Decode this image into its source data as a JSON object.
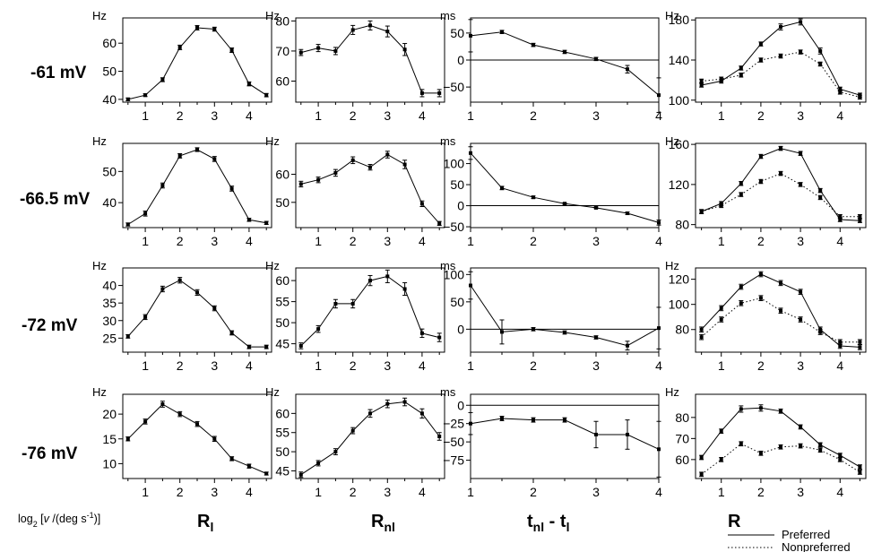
{
  "figure": {
    "x_caption": "log2 [v /(deg s-1)]",
    "x_caption_parts": {
      "a": "log",
      "b": "2",
      "c": " [",
      "d": "v",
      "e": " /(deg s",
      "f": "-1",
      "g": ")]"
    },
    "column_labels": [
      {
        "main": "R",
        "sub": "l"
      },
      {
        "main": "R",
        "sub": "nl"
      },
      {
        "main": "t",
        "sub1": "nl",
        "mid": " - t",
        "sub2": "l"
      },
      {
        "main": "R",
        "sub": ""
      }
    ],
    "row_labels": [
      "-61 mV",
      "-66.5 mV",
      "-72 mV",
      "-76 mV"
    ],
    "legend": {
      "preferred": "Preferred",
      "nonpreferred": "Nonpreferred"
    },
    "colors": {
      "line": "#000000",
      "axis": "#000000"
    }
  },
  "chart_data": [
    {
      "type": "line",
      "row": 0,
      "col": 0,
      "ylabel": "Hz",
      "xlim": [
        0.35,
        4.65
      ],
      "ylim": [
        39,
        69
      ],
      "xticks": [
        1,
        2,
        3,
        4
      ],
      "yticks": [
        40,
        50,
        60
      ],
      "x": [
        0.5,
        1,
        1.5,
        2,
        2.5,
        3,
        3.5,
        4,
        4.5
      ],
      "series": [
        {
          "values": [
            40,
            41.5,
            47,
            58.5,
            65.5,
            65,
            57.5,
            45.5,
            41.5
          ],
          "err": [
            0.5,
            0.5,
            0.7,
            0.8,
            0.8,
            0.7,
            0.8,
            0.7,
            0.6
          ]
        }
      ]
    },
    {
      "type": "line",
      "row": 0,
      "col": 1,
      "ylabel": "Hz",
      "xlim": [
        0.35,
        4.65
      ],
      "ylim": [
        53,
        81
      ],
      "xticks": [
        1,
        2,
        3,
        4
      ],
      "yticks": [
        60,
        70,
        80
      ],
      "x": [
        0.5,
        1,
        1.5,
        2,
        2.5,
        3,
        3.5,
        4,
        4.5
      ],
      "series": [
        {
          "values": [
            69.5,
            71,
            70,
            77,
            78.5,
            76.5,
            70.5,
            56,
            56
          ],
          "err": [
            1,
            1.2,
            1.2,
            1.5,
            1.5,
            1.8,
            2,
            1.2,
            1.2
          ]
        }
      ]
    },
    {
      "type": "line",
      "row": 0,
      "col": 2,
      "ylabel": "ms",
      "xlim": [
        1,
        4
      ],
      "ylim": [
        -78,
        78
      ],
      "xticks": [
        1,
        2,
        3,
        4
      ],
      "yticks": [
        50,
        0,
        -50
      ],
      "zero_line": true,
      "x": [
        1,
        1.5,
        2,
        2.5,
        3,
        3.5,
        4
      ],
      "series": [
        {
          "values": [
            45,
            52,
            28,
            15,
            2,
            -17,
            -65
          ],
          "err": [
            30,
            3,
            3,
            3,
            3,
            7,
            32
          ]
        }
      ]
    },
    {
      "type": "line",
      "row": 0,
      "col": 3,
      "ylabel": "Hz",
      "xlim": [
        0.35,
        4.65
      ],
      "ylim": [
        98,
        182
      ],
      "xticks": [
        1,
        2,
        3,
        4
      ],
      "yticks": [
        100,
        140,
        180
      ],
      "x": [
        0.5,
        1,
        1.5,
        2,
        2.5,
        3,
        3.5,
        4,
        4.5
      ],
      "series": [
        {
          "name": "Preferred",
          "values": [
            115,
            119,
            132,
            156,
            173,
            178,
            149,
            111,
            105
          ],
          "err": [
            2,
            2,
            2,
            2,
            3,
            3,
            3,
            2,
            2
          ]
        },
        {
          "name": "Nonpreferred",
          "values": [
            119,
            121,
            125,
            140,
            144,
            148,
            136,
            108,
            103
          ],
          "err": [
            2,
            2,
            2,
            2,
            2,
            2,
            2,
            2,
            2
          ]
        }
      ]
    },
    {
      "type": "line",
      "row": 1,
      "col": 0,
      "ylabel": "Hz",
      "xlim": [
        0.35,
        4.65
      ],
      "ylim": [
        32,
        59
      ],
      "xticks": [
        1,
        2,
        3,
        4
      ],
      "yticks": [
        40,
        50
      ],
      "x": [
        0.5,
        1,
        1.5,
        2,
        2.5,
        3,
        3.5,
        4,
        4.5
      ],
      "series": [
        {
          "values": [
            33,
            36.5,
            45.5,
            55,
            57,
            54,
            44.5,
            34.5,
            33.5
          ],
          "err": [
            0.5,
            0.8,
            0.8,
            0.7,
            0.6,
            0.8,
            0.8,
            0.5,
            0.5
          ]
        }
      ]
    },
    {
      "type": "line",
      "row": 1,
      "col": 1,
      "ylabel": "Hz",
      "xlim": [
        0.35,
        4.65
      ],
      "ylim": [
        41,
        71
      ],
      "xticks": [
        1,
        2,
        3,
        4
      ],
      "yticks": [
        50,
        60
      ],
      "x": [
        0.5,
        1,
        1.5,
        2,
        2.5,
        3,
        3.5,
        4,
        4.5
      ],
      "series": [
        {
          "values": [
            56.5,
            58,
            60.5,
            65,
            62.5,
            67,
            63.5,
            49.5,
            42.5
          ],
          "err": [
            1,
            1,
            1.2,
            1.2,
            1,
            1.2,
            1.5,
            1,
            0.7
          ]
        }
      ]
    },
    {
      "type": "line",
      "row": 1,
      "col": 2,
      "ylabel": "ms",
      "xlim": [
        1,
        4
      ],
      "ylim": [
        -52,
        148
      ],
      "xticks": [
        1,
        2,
        3,
        4
      ],
      "yticks": [
        100,
        50,
        0,
        -50
      ],
      "zero_line": true,
      "x": [
        1,
        1.5,
        2,
        2.5,
        3,
        3.5,
        4
      ],
      "series": [
        {
          "values": [
            125,
            42,
            20,
            5,
            -5,
            -18,
            -40
          ],
          "err": [
            15,
            4,
            3,
            2,
            2,
            3,
            6
          ]
        }
      ]
    },
    {
      "type": "line",
      "row": 1,
      "col": 3,
      "ylabel": "Hz",
      "xlim": [
        0.35,
        4.65
      ],
      "ylim": [
        77,
        161
      ],
      "xticks": [
        1,
        2,
        3,
        4
      ],
      "yticks": [
        80,
        120,
        160
      ],
      "x": [
        0.5,
        1,
        1.5,
        2,
        2.5,
        3,
        3.5,
        4,
        4.5
      ],
      "series": [
        {
          "name": "Preferred",
          "values": [
            93,
            101,
            121,
            148,
            156,
            151,
            114,
            85,
            84
          ],
          "err": [
            2,
            2,
            2,
            2,
            2,
            2,
            2,
            2,
            2
          ]
        },
        {
          "name": "Nonpreferred",
          "values": [
            93,
            99,
            110,
            123,
            131,
            120,
            107,
            88,
            88
          ],
          "err": [
            2,
            2,
            2,
            2,
            2,
            2,
            2,
            2,
            2
          ]
        }
      ]
    },
    {
      "type": "line",
      "row": 2,
      "col": 0,
      "ylabel": "Hz",
      "xlim": [
        0.35,
        4.65
      ],
      "ylim": [
        21,
        45
      ],
      "xticks": [
        1,
        2,
        3,
        4
      ],
      "yticks": [
        25,
        30,
        35,
        40
      ],
      "x": [
        0.5,
        1,
        1.5,
        2,
        2.5,
        3,
        3.5,
        4,
        4.5
      ],
      "series": [
        {
          "values": [
            25.5,
            31,
            39,
            41.5,
            38,
            33.5,
            26.5,
            22.5,
            22.5
          ],
          "err": [
            0.5,
            0.7,
            0.8,
            0.8,
            0.8,
            0.7,
            0.6,
            0.5,
            0.5
          ]
        }
      ]
    },
    {
      "type": "line",
      "row": 2,
      "col": 1,
      "ylabel": "Hz",
      "xlim": [
        0.35,
        4.65
      ],
      "ylim": [
        43,
        63
      ],
      "xticks": [
        1,
        2,
        3,
        4
      ],
      "yticks": [
        45,
        50,
        55,
        60
      ],
      "x": [
        0.5,
        1,
        1.5,
        2,
        2.5,
        3,
        3.5,
        4,
        4.5
      ],
      "series": [
        {
          "values": [
            44.5,
            48.5,
            54.5,
            54.5,
            60,
            61,
            58,
            47.5,
            46.5
          ],
          "err": [
            0.7,
            0.8,
            1,
            1,
            1.2,
            1.5,
            1.5,
            1,
            1
          ]
        }
      ]
    },
    {
      "type": "line",
      "row": 2,
      "col": 2,
      "ylabel": "ms",
      "xlim": [
        1,
        4
      ],
      "ylim": [
        -42,
        112
      ],
      "xticks": [
        1,
        2,
        3,
        4
      ],
      "yticks": [
        100,
        50,
        0
      ],
      "zero_line": true,
      "x": [
        1,
        1.5,
        2,
        2.5,
        3,
        3.5,
        4
      ],
      "series": [
        {
          "values": [
            80,
            -5,
            0,
            -6,
            -15,
            -30,
            2
          ],
          "err": [
            25,
            22,
            3,
            3,
            3,
            8,
            38
          ]
        }
      ]
    },
    {
      "type": "line",
      "row": 2,
      "col": 3,
      "ylabel": "Hz",
      "xlim": [
        0.35,
        4.65
      ],
      "ylim": [
        62,
        129
      ],
      "xticks": [
        1,
        2,
        3,
        4
      ],
      "yticks": [
        80,
        100,
        120
      ],
      "x": [
        0.5,
        1,
        1.5,
        2,
        2.5,
        3,
        3.5,
        4,
        4.5
      ],
      "series": [
        {
          "name": "Preferred",
          "values": [
            80,
            97,
            114,
            124,
            117,
            110,
            80,
            67,
            66
          ],
          "err": [
            2,
            2,
            2,
            2,
            2,
            2,
            2,
            2,
            2
          ]
        },
        {
          "name": "Nonpreferred",
          "values": [
            74,
            88,
            101,
            105,
            95,
            88,
            78,
            70,
            70
          ],
          "err": [
            2,
            2,
            2,
            2,
            2,
            2,
            2,
            2,
            2
          ]
        }
      ]
    },
    {
      "type": "line",
      "row": 3,
      "col": 0,
      "ylabel": "Hz",
      "xlim": [
        0.35,
        4.65
      ],
      "ylim": [
        7,
        24
      ],
      "xticks": [
        1,
        2,
        3,
        4
      ],
      "yticks": [
        10,
        15,
        20
      ],
      "x": [
        0.5,
        1,
        1.5,
        2,
        2.5,
        3,
        3.5,
        4,
        4.5
      ],
      "series": [
        {
          "values": [
            15,
            18.5,
            22,
            20,
            18,
            15,
            11,
            9.5,
            8
          ],
          "err": [
            0.4,
            0.5,
            0.6,
            0.5,
            0.5,
            0.5,
            0.4,
            0.4,
            0.3
          ]
        }
      ]
    },
    {
      "type": "line",
      "row": 3,
      "col": 1,
      "ylabel": "Hz",
      "xlim": [
        0.35,
        4.65
      ],
      "ylim": [
        43,
        65
      ],
      "xticks": [
        1,
        2,
        3,
        4
      ],
      "yticks": [
        45,
        50,
        55,
        60
      ],
      "x": [
        0.5,
        1,
        1.5,
        2,
        2.5,
        3,
        3.5,
        4,
        4.5
      ],
      "series": [
        {
          "values": [
            44,
            47,
            50,
            55.5,
            60,
            62.5,
            63,
            60,
            54
          ],
          "err": [
            0.7,
            0.7,
            0.8,
            0.8,
            1,
            1,
            1,
            1.2,
            1
          ]
        }
      ]
    },
    {
      "type": "line",
      "row": 3,
      "col": 2,
      "ylabel": "ms",
      "xlim": [
        1,
        4
      ],
      "ylim": [
        -100,
        15
      ],
      "xticks": [
        1,
        2,
        3,
        4
      ],
      "yticks": [
        0,
        -25,
        -50,
        -75
      ],
      "zero_line": true,
      "x": [
        1,
        1.5,
        2,
        2.5,
        3,
        3.5,
        4
      ],
      "series": [
        {
          "values": [
            -25,
            -18,
            -20,
            -20,
            -40,
            -40,
            -60
          ],
          "err": [
            15,
            3,
            3,
            3,
            18,
            20,
            38
          ]
        }
      ]
    },
    {
      "type": "line",
      "row": 3,
      "col": 3,
      "ylabel": "Hz",
      "xlim": [
        0.35,
        4.65
      ],
      "ylim": [
        51,
        91
      ],
      "xticks": [
        1,
        2,
        3,
        4
      ],
      "yticks": [
        60,
        70,
        80
      ],
      "x": [
        0.5,
        1,
        1.5,
        2,
        2.5,
        3,
        3.5,
        4,
        4.5
      ],
      "series": [
        {
          "name": "Preferred",
          "values": [
            61,
            73.5,
            84,
            84.5,
            83,
            75.5,
            67,
            62,
            56.5
          ],
          "err": [
            1,
            1,
            1.5,
            1.5,
            1,
            1,
            1,
            1,
            1
          ]
        },
        {
          "name": "Nonpreferred",
          "values": [
            53,
            60,
            67.5,
            63,
            66,
            66.5,
            64.5,
            60,
            54
          ],
          "err": [
            1,
            1,
            1,
            1,
            1,
            1,
            1,
            1,
            1
          ]
        }
      ]
    }
  ]
}
